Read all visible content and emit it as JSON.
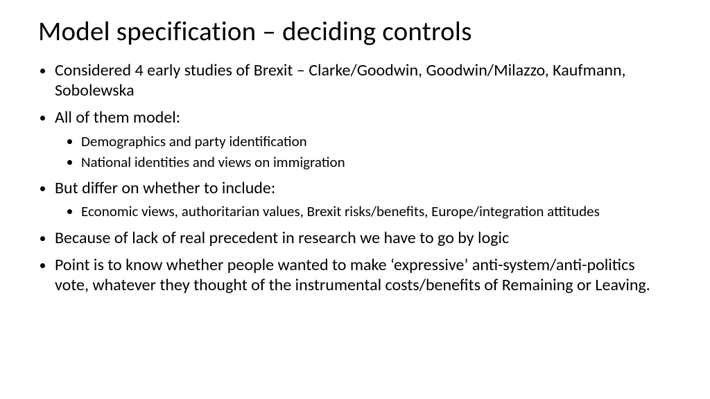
{
  "slide": {
    "title": "Model specification – deciding controls",
    "bullets": [
      {
        "text": "Considered 4 early studies of Brexit – Clarke/Goodwin, Goodwin/Milazzo, Kaufmann, Sobolewska",
        "sub": []
      },
      {
        "text": "All of them model:",
        "sub": [
          "Demographics and party identification",
          "National identities and views on immigration"
        ]
      },
      {
        "text": "But differ on whether to include:",
        "sub": [
          "Economic views, authoritarian values, Brexit risks/benefits, Europe/integration attitudes"
        ]
      },
      {
        "text": "Because of lack of real precedent in research we have to go by logic",
        "sub": []
      },
      {
        "text": "Point is to know whether people wanted to make ‘expressive’ anti-system/anti-politics vote, whatever they thought of the instrumental costs/benefits of Remaining or Leaving.",
        "sub": []
      }
    ]
  },
  "style": {
    "background_color": "#ffffff",
    "text_color": "#000000",
    "title_fontsize": 39,
    "body_fontsize": 24,
    "sub_fontsize": 21,
    "font_family": "Calibri"
  }
}
